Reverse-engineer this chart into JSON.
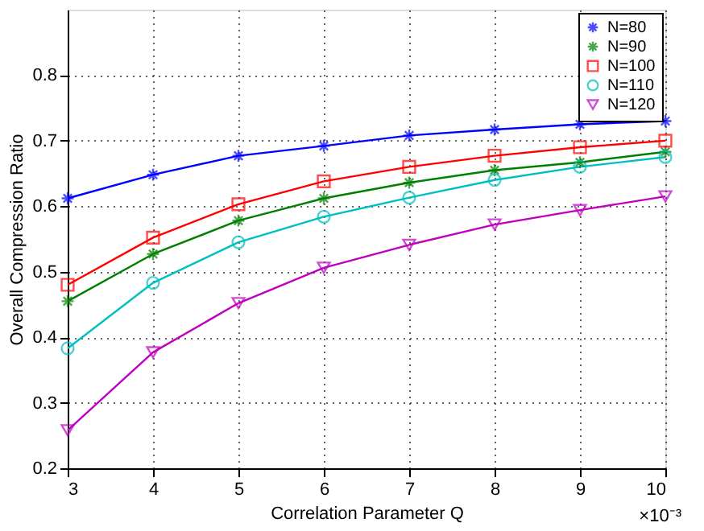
{
  "chart_data": {
    "type": "line",
    "xlabel": "Correlation Parameter Q",
    "ylabel": "Overall Compression Ratio",
    "x": [
      3,
      4,
      5,
      6,
      7,
      8,
      9,
      10
    ],
    "series": [
      {
        "name": "N=80",
        "color": "#0000ff",
        "marker": "cross",
        "values": [
          0.612,
          0.648,
          0.677,
          0.692,
          0.708,
          0.717,
          0.725,
          0.73
        ]
      },
      {
        "name": "N=90",
        "color": "#008000",
        "marker": "cross",
        "values": [
          0.455,
          0.527,
          0.578,
          0.612,
          0.636,
          0.655,
          0.667,
          0.683
        ]
      },
      {
        "name": "N=100",
        "color": "#ff0000",
        "marker": "square",
        "values": [
          0.48,
          0.552,
          0.603,
          0.638,
          0.66,
          0.677,
          0.69,
          0.7
        ]
      },
      {
        "name": "N=110",
        "color": "#00bfbf",
        "marker": "circle",
        "values": [
          0.383,
          0.483,
          0.545,
          0.584,
          0.613,
          0.64,
          0.66,
          0.675
        ]
      },
      {
        "name": "N=120",
        "color": "#bf00bf",
        "marker": "triangle",
        "values": [
          0.258,
          0.377,
          0.452,
          0.506,
          0.541,
          0.572,
          0.594,
          0.615
        ]
      }
    ],
    "xlim": [
      3,
      10
    ],
    "xticks": [
      3,
      4,
      5,
      6,
      7,
      8,
      9,
      10
    ],
    "ylim": [
      0.2,
      0.9
    ],
    "yticks": [
      0.2,
      0.3,
      0.4,
      0.5,
      0.6,
      0.7,
      0.8
    ],
    "annotations": [
      "×10⁻³"
    ],
    "grid": true,
    "legend": "top right",
    "line_style": "solid"
  }
}
